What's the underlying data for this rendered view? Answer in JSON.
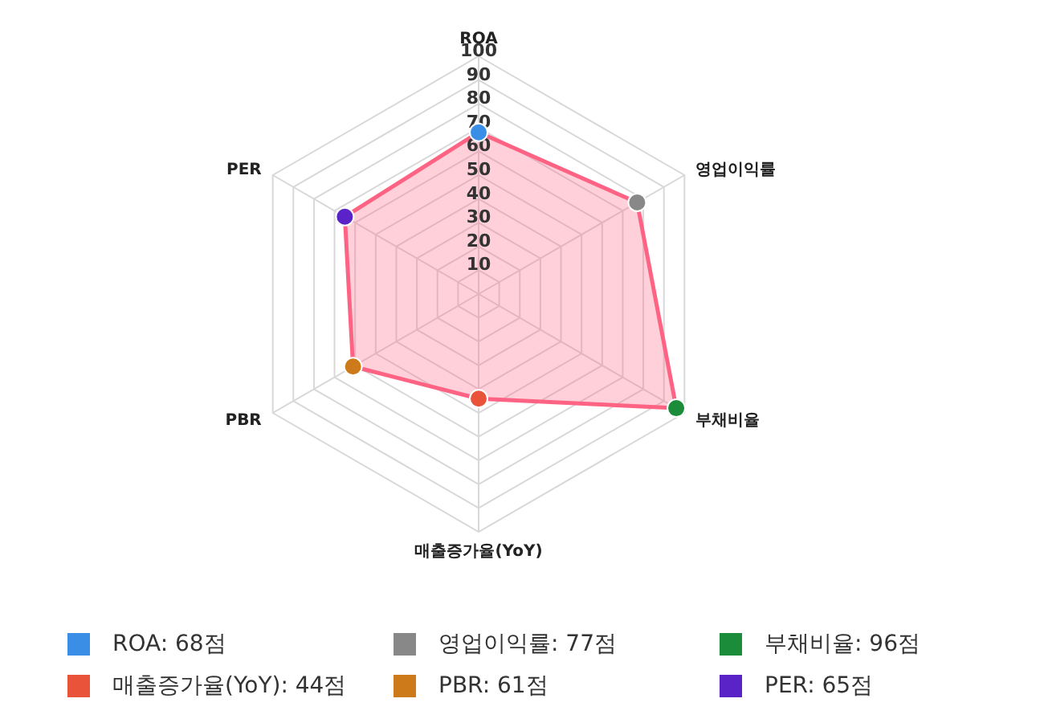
{
  "chart_data": {
    "type": "radar",
    "categories": [
      "ROA",
      "영업이익률",
      "부채비율",
      "매출증가율(YoY)",
      "PBR",
      "PER"
    ],
    "series": [
      {
        "color": "#ff6384",
        "values": [
          68,
          77,
          96,
          44,
          61,
          65
        ],
        "colors": [
          "#3a8ee6",
          "#888888",
          "#1a8c3a",
          "#e8533a",
          "#cc7a1a",
          "#5a23c8"
        ]
      }
    ],
    "annotations": [
      "ROA: 68점",
      "영업이익률: 77점",
      "부채비율: 96점",
      "매출증가율(YoY): 44점",
      "PBR: 61점",
      "PER: 65점"
    ],
    "ylim": [
      0,
      100
    ],
    "yticks": [
      10,
      20,
      30,
      40,
      50,
      60,
      70,
      80,
      90,
      100
    ],
    "grid": true,
    "marker": "circle"
  }
}
